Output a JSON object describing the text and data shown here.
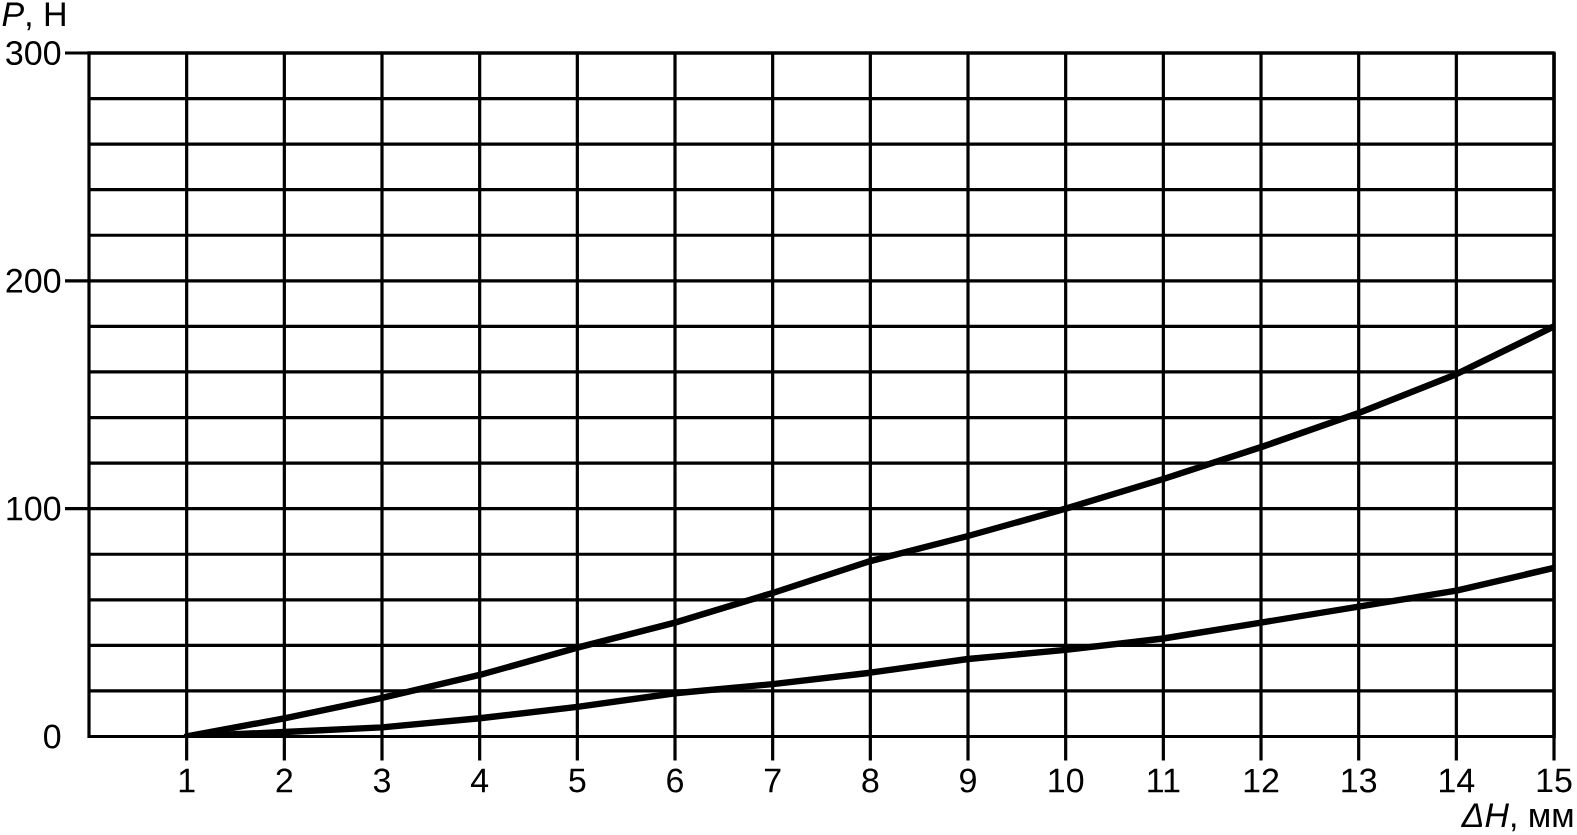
{
  "chart_data": {
    "type": "line",
    "xlabel": "*ΔH*, мм",
    "ylabel": "*P*, Н",
    "x": [
      1,
      2,
      3,
      4,
      5,
      6,
      7,
      8,
      9,
      10,
      11,
      12,
      13,
      14,
      15
    ],
    "series": [
      {
        "color": "#000000",
        "values": [
          0,
          8,
          17,
          27,
          39,
          50,
          63,
          77,
          88,
          100,
          113,
          127,
          142,
          159,
          180
        ]
      },
      {
        "color": "#000000",
        "values": [
          0,
          2,
          4,
          8,
          13,
          19,
          23,
          28,
          34,
          38,
          43,
          50,
          57,
          64,
          74
        ]
      }
    ],
    "xlim": [
      0,
      15
    ],
    "ylim": [
      0,
      300
    ],
    "xticks": [
      1,
      2,
      3,
      4,
      5,
      6,
      7,
      8,
      9,
      10,
      11,
      12,
      13,
      14,
      15
    ],
    "yticks": [
      0,
      {
        "value": 20,
        "label": null
      },
      {
        "value": 40,
        "label": null
      },
      {
        "value": 60,
        "label": null
      },
      {
        "value": 80,
        "label": null
      },
      100,
      {
        "value": 120,
        "label": null
      },
      {
        "value": 140,
        "label": null
      },
      {
        "value": 160,
        "label": null
      },
      {
        "value": 180,
        "label": null
      },
      200,
      {
        "value": 220,
        "label": null
      },
      {
        "value": 240,
        "label": null
      },
      {
        "value": 260,
        "label": null
      },
      {
        "value": 280,
        "label": null
      },
      300
    ],
    "grid": true,
    "marker": "none",
    "line_style": "solid"
  }
}
